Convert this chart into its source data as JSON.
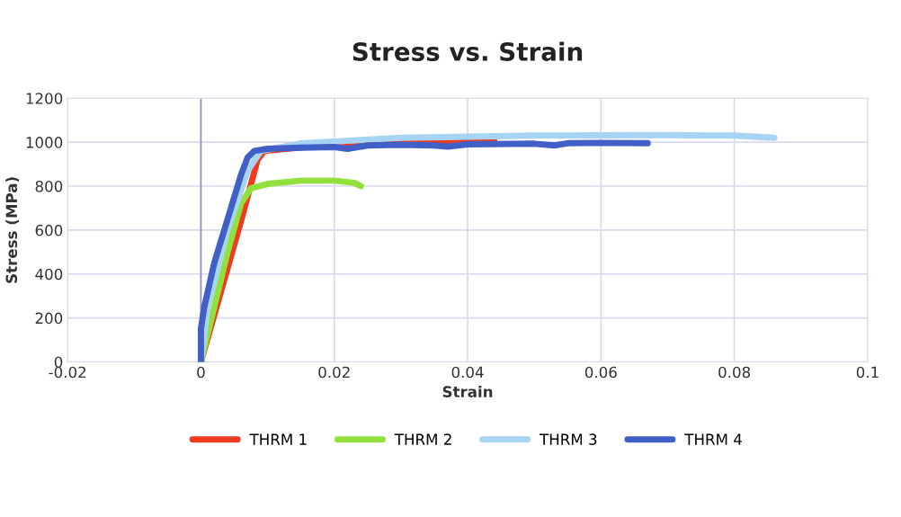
{
  "chart_data": {
    "type": "line",
    "title": "Stress vs. Strain",
    "xlabel": "Strain",
    "ylabel": "Stress (MPa)",
    "xlim": [
      -0.02,
      0.1
    ],
    "xticks": [
      -0.02,
      0,
      0.02,
      0.04,
      0.06,
      0.08,
      0.1
    ],
    "ylim": [
      0,
      1200
    ],
    "yticks": [
      0,
      200,
      400,
      600,
      800,
      1000,
      1200
    ],
    "grid": true,
    "ref_lines": [
      {
        "axis": "x",
        "value": 0,
        "color": "#9090c0"
      }
    ],
    "legend": "bottom",
    "marker": "none",
    "line_style": "solid",
    "series": [
      {
        "name": "THRM 1",
        "color": "#f03c1e",
        "x": [
          0,
          0.003,
          0.006,
          0.0085,
          0.0095,
          0.02,
          0.03,
          0.04,
          0.044
        ],
        "values": [
          0,
          320,
          640,
          920,
          960,
          990,
          998,
          1005,
          1005
        ]
      },
      {
        "name": "THRM 2",
        "color": "#92e03c",
        "x": [
          0,
          0.002,
          0.004,
          0.006,
          0.0075,
          0.01,
          0.015,
          0.02,
          0.023,
          0.024
        ],
        "values": [
          0,
          250,
          500,
          720,
          790,
          810,
          825,
          825,
          815,
          800
        ]
      },
      {
        "name": "THRM 3",
        "color": "#a8d4f4",
        "x": [
          0,
          0.001,
          0.004,
          0.007,
          0.009,
          0.015,
          0.03,
          0.05,
          0.07,
          0.08,
          0.086
        ],
        "values": [
          0,
          250,
          600,
          870,
          960,
          995,
          1020,
          1030,
          1032,
          1030,
          1020
        ]
      },
      {
        "name": "THRM 4",
        "color": "#4060c8",
        "x": [
          0,
          0,
          0.0005,
          0.002,
          0.004,
          0.006,
          0.007,
          0.008,
          0.01,
          0.015,
          0.02,
          0.022,
          0.025,
          0.03,
          0.035,
          0.037,
          0.04,
          0.05,
          0.053,
          0.055,
          0.06,
          0.067
        ],
        "values": [
          0,
          150,
          250,
          450,
          650,
          850,
          930,
          960,
          970,
          975,
          978,
          970,
          985,
          988,
          985,
          980,
          990,
          993,
          985,
          995,
          997,
          995
        ]
      }
    ]
  }
}
